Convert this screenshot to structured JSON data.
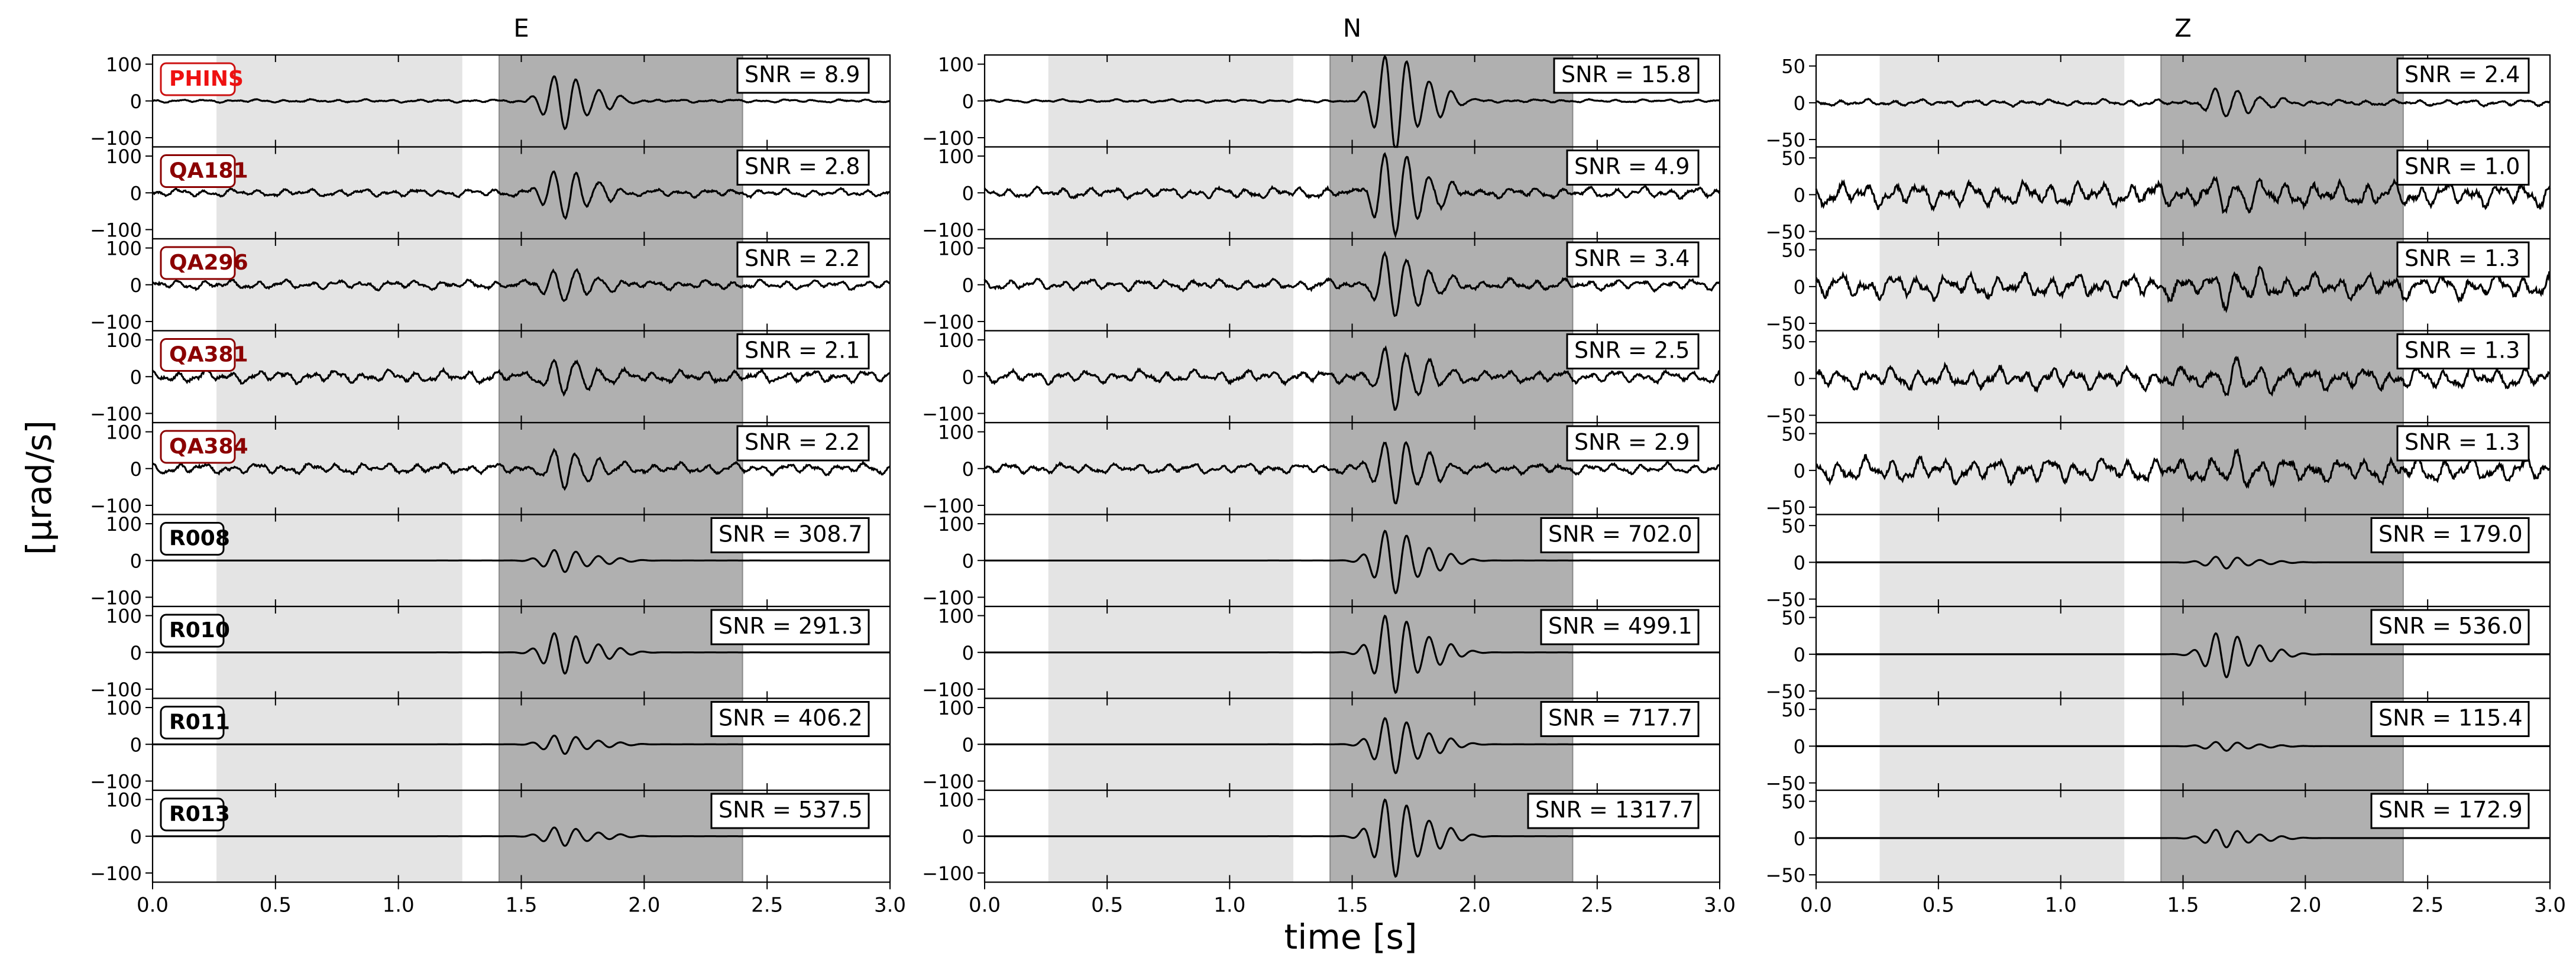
{
  "chart_data": {
    "type": "line",
    "description": "Waveform traces for 9 stations in 3 components (E, N, Z) with SNR values",
    "xlabel": "time [s]",
    "ylabel": "[μrad/s]",
    "xlim": [
      0.0,
      3.0
    ],
    "xticks": [
      "0.0",
      "0.5",
      "1.0",
      "1.5",
      "2.0",
      "2.5",
      "3.0"
    ],
    "windows": {
      "noise": [
        0.26,
        1.26
      ],
      "signal": [
        1.41,
        2.4
      ]
    },
    "columns": [
      {
        "title": "E",
        "yticks": {
          "values": [
            100,
            0,
            -100
          ],
          "labels": [
            "100",
            "0",
            "−100"
          ]
        },
        "ylim": [
          -125,
          125
        ],
        "snr": [
          "SNR = 8.9",
          "SNR = 2.8",
          "SNR = 2.2",
          "SNR = 2.1",
          "SNR = 2.2",
          "SNR = 308.7",
          "SNR = 291.3",
          "SNR = 406.2",
          "SNR = 537.5"
        ],
        "amplitude": [
          70,
          60,
          38,
          40,
          45,
          30,
          55,
          25,
          25
        ],
        "noise": [
          4,
          10,
          12,
          16,
          14,
          0,
          0,
          0,
          0
        ]
      },
      {
        "title": "N",
        "yticks": {
          "values": [
            100,
            0,
            -100
          ],
          "labels": [
            "100",
            "0",
            "−100"
          ]
        },
        "ylim": [
          -125,
          125
        ],
        "snr": [
          "SNR = 15.8",
          "SNR = 4.9",
          "SNR = 3.4",
          "SNR = 2.5",
          "SNR = 2.9",
          "SNR = 702.0",
          "SNR = 499.1",
          "SNR = 717.7",
          "SNR = 1317.7"
        ],
        "amplitude": [
          130,
          110,
          80,
          75,
          80,
          85,
          105,
          75,
          105
        ],
        "noise": [
          4,
          14,
          14,
          16,
          13,
          0,
          0,
          0,
          0
        ]
      },
      {
        "title": "Z",
        "yticks": {
          "values": [
            50,
            0,
            -50
          ],
          "labels": [
            "50",
            "0",
            "−50"
          ]
        },
        "ylim": [
          -60,
          65
        ],
        "snr": [
          "SNR = 2.4",
          "SNR = 1.0",
          "SNR = 1.3",
          "SNR = 1.3",
          "SNR = 1.3",
          "SNR = 179.0",
          "SNR = 536.0",
          "SNR = 115.4",
          "SNR = 172.9"
        ],
        "amplitude": [
          18,
          14,
          14,
          16,
          14,
          8,
          30,
          6,
          12
        ],
        "noise": [
          4,
          16,
          16,
          14,
          16,
          0,
          0,
          0,
          0
        ]
      }
    ],
    "stations": [
      {
        "name": "PHINS",
        "color": "#ee1111",
        "border": "#cc1111"
      },
      {
        "name": "QA181",
        "color": "#8b0000",
        "border": "#8b0000"
      },
      {
        "name": "QA296",
        "color": "#8b0000",
        "border": "#8b0000"
      },
      {
        "name": "QA381",
        "color": "#8b0000",
        "border": "#8b0000"
      },
      {
        "name": "QA384",
        "color": "#8b0000",
        "border": "#8b0000"
      },
      {
        "name": "R008",
        "color": "#000000",
        "border": "#000000"
      },
      {
        "name": "R010",
        "color": "#000000",
        "border": "#000000"
      },
      {
        "name": "R011",
        "color": "#000000",
        "border": "#000000"
      },
      {
        "name": "R013",
        "color": "#000000",
        "border": "#000000"
      }
    ],
    "colors": {
      "noise_window": "#e4e4e4",
      "signal_window": "#b0b0b0",
      "trace": "#000000"
    }
  }
}
